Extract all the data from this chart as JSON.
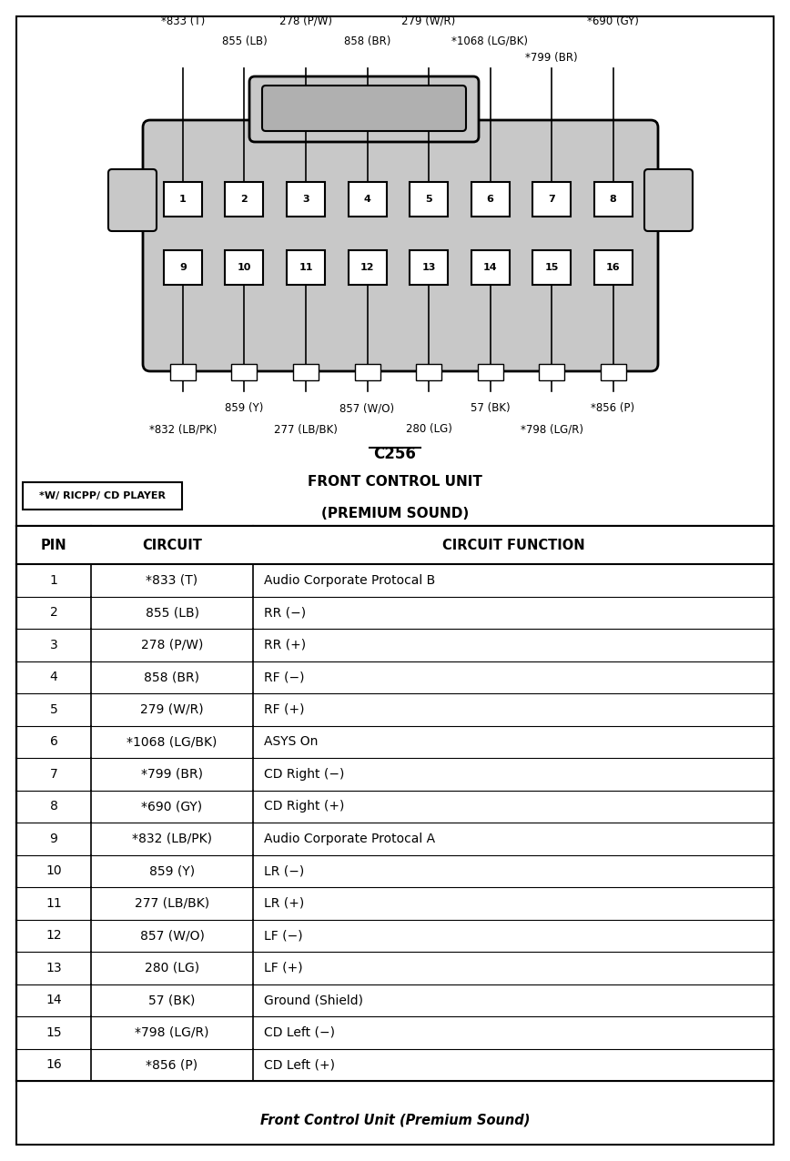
{
  "title_bottom": "Front Control Unit (Premium Sound)",
  "connector_label": "C256",
  "asterisk_note": "*W/ RICPP/ CD PLAYER",
  "pins_top": [
    1,
    2,
    3,
    4,
    5,
    6,
    7,
    8
  ],
  "pins_bottom": [
    9,
    10,
    11,
    12,
    13,
    14,
    15,
    16
  ],
  "top_wire_labels": [
    {
      "text": "*833 (T)",
      "pin": 0,
      "row": 0
    },
    {
      "text": "855 (LB)",
      "pin": 1,
      "row": 1
    },
    {
      "text": "278 (P/W)",
      "pin": 2,
      "row": 0
    },
    {
      "text": "858 (BR)",
      "pin": 3,
      "row": 1
    },
    {
      "text": "279 (W/R)",
      "pin": 4,
      "row": 0
    },
    {
      "text": "*1068 (LG/BK)",
      "pin": 5,
      "row": 1
    },
    {
      "text": "*799 (BR)",
      "pin": 6,
      "row": 2
    },
    {
      "text": "*690 (GY)",
      "pin": 7,
      "row": 0
    }
  ],
  "bot_wire_labels": [
    {
      "text": "*832 (LB/PK)",
      "pin": 0,
      "row": 1
    },
    {
      "text": "859 (Y)",
      "pin": 1,
      "row": 0
    },
    {
      "text": "277 (LB/BK)",
      "pin": 2,
      "row": 1
    },
    {
      "text": "857 (W/O)",
      "pin": 3,
      "row": 0
    },
    {
      "text": "280 (LG)",
      "pin": 4,
      "row": 1
    },
    {
      "text": "57 (BK)",
      "pin": 5,
      "row": 0
    },
    {
      "text": "*798 (LG/R)",
      "pin": 6,
      "row": 1
    },
    {
      "text": "*856 (P)",
      "pin": 7,
      "row": 0
    }
  ],
  "table_data": [
    [
      "1",
      "*833 (T)",
      "Audio Corporate Protocal B"
    ],
    [
      "2",
      "855 (LB)",
      "RR (−)"
    ],
    [
      "3",
      "278 (P/W)",
      "RR (+)"
    ],
    [
      "4",
      "858 (BR)",
      "RF (−)"
    ],
    [
      "5",
      "279 (W/R)",
      "RF (+)"
    ],
    [
      "6",
      "*1068 (LG/BK)",
      "ASYS On"
    ],
    [
      "7",
      "*799 (BR)",
      "CD Right (−)"
    ],
    [
      "8",
      "*690 (GY)",
      "CD Right (+)"
    ],
    [
      "9",
      "*832 (LB/PK)",
      "Audio Corporate Protocal A"
    ],
    [
      "10",
      "859 (Y)",
      "LR (−)"
    ],
    [
      "11",
      "277 (LB/BK)",
      "LR (+)"
    ],
    [
      "12",
      "857 (W/O)",
      "LF (−)"
    ],
    [
      "13",
      "280 (LG)",
      "LF (+)"
    ],
    [
      "14",
      "57 (BK)",
      "Ground (Shield)"
    ],
    [
      "15",
      "*798 (LG/R)",
      "CD Left (−)"
    ],
    [
      "16",
      "*856 (P)",
      "CD Left (+)"
    ]
  ],
  "bg_color": "#ffffff",
  "connector_fill": "#c8c8c8",
  "border_color": "#000000"
}
